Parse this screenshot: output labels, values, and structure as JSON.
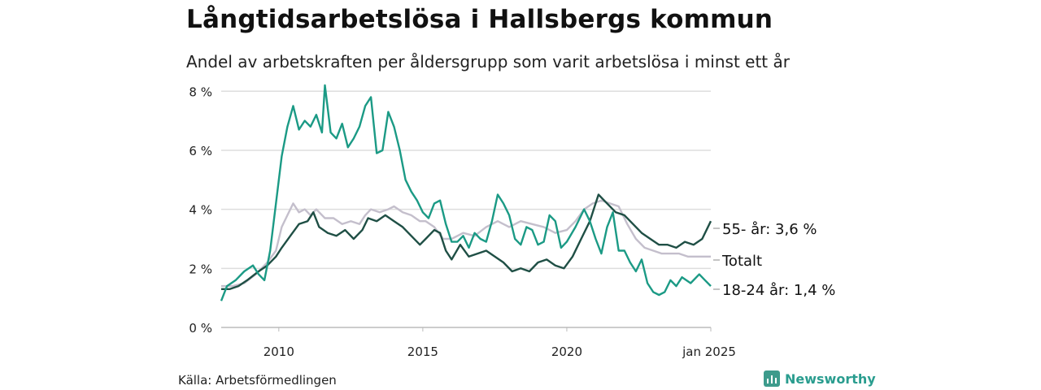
{
  "title": "Långtidsarbetslösa i Hallsbergs kommun",
  "subtitle": "Andel av arbetskraften per åldersgrupp som varit arbetslösa i minst ett år",
  "source": "Källa: Arbetsförmedlingen",
  "brand": {
    "name": "Newsworthy",
    "icon": "bar-chart-icon",
    "color": "#2a9d8f"
  },
  "chart_data": {
    "type": "line",
    "ylim": [
      0,
      8.2
    ],
    "y_ticks": [
      0,
      2,
      4,
      6,
      8
    ],
    "y_tick_labels": [
      "0 %",
      "2 %",
      "4 %",
      "6 %",
      "8 %"
    ],
    "x_range": [
      2008.0,
      2025.0
    ],
    "x_ticks": [
      2010,
      2015,
      2020,
      2025
    ],
    "x_tick_labels": [
      "2010",
      "2015",
      "2020",
      "jan 2025"
    ],
    "grid": true,
    "series": [
      {
        "name": "Totalt",
        "label": "Totalt",
        "color": "#c4bfcc",
        "points": [
          [
            2008.0,
            1.4
          ],
          [
            2008.4,
            1.4
          ],
          [
            2008.8,
            1.5
          ],
          [
            2009.2,
            1.8
          ],
          [
            2009.6,
            2.2
          ],
          [
            2009.9,
            2.6
          ],
          [
            2010.1,
            3.4
          ],
          [
            2010.3,
            3.8
          ],
          [
            2010.5,
            4.2
          ],
          [
            2010.7,
            3.9
          ],
          [
            2010.9,
            4.0
          ],
          [
            2011.1,
            3.8
          ],
          [
            2011.3,
            4.0
          ],
          [
            2011.6,
            3.7
          ],
          [
            2011.9,
            3.7
          ],
          [
            2012.2,
            3.5
          ],
          [
            2012.5,
            3.6
          ],
          [
            2012.8,
            3.5
          ],
          [
            2013.0,
            3.8
          ],
          [
            2013.2,
            4.0
          ],
          [
            2013.5,
            3.9
          ],
          [
            2013.8,
            4.0
          ],
          [
            2014.0,
            4.1
          ],
          [
            2014.3,
            3.9
          ],
          [
            2014.6,
            3.8
          ],
          [
            2014.9,
            3.6
          ],
          [
            2015.1,
            3.6
          ],
          [
            2015.4,
            3.4
          ],
          [
            2015.7,
            3.0
          ],
          [
            2016.0,
            3.0
          ],
          [
            2016.4,
            3.2
          ],
          [
            2016.8,
            3.1
          ],
          [
            2017.2,
            3.4
          ],
          [
            2017.6,
            3.6
          ],
          [
            2018.0,
            3.4
          ],
          [
            2018.4,
            3.6
          ],
          [
            2018.8,
            3.5
          ],
          [
            2019.2,
            3.4
          ],
          [
            2019.6,
            3.2
          ],
          [
            2020.0,
            3.3
          ],
          [
            2020.3,
            3.6
          ],
          [
            2020.6,
            4.0
          ],
          [
            2020.9,
            4.2
          ],
          [
            2021.2,
            4.3
          ],
          [
            2021.5,
            4.2
          ],
          [
            2021.8,
            4.1
          ],
          [
            2022.1,
            3.5
          ],
          [
            2022.4,
            3.0
          ],
          [
            2022.7,
            2.7
          ],
          [
            2023.0,
            2.6
          ],
          [
            2023.3,
            2.5
          ],
          [
            2023.6,
            2.5
          ],
          [
            2023.9,
            2.5
          ],
          [
            2024.2,
            2.4
          ],
          [
            2024.5,
            2.4
          ],
          [
            2024.8,
            2.4
          ],
          [
            2025.0,
            2.4
          ]
        ]
      },
      {
        "name": "55- år",
        "label": "55- år: 3,6 %",
        "color": "#1f4f45",
        "points": [
          [
            2008.0,
            1.3
          ],
          [
            2008.3,
            1.3
          ],
          [
            2008.6,
            1.4
          ],
          [
            2008.9,
            1.6
          ],
          [
            2009.3,
            1.9
          ],
          [
            2009.6,
            2.1
          ],
          [
            2009.9,
            2.4
          ],
          [
            2010.1,
            2.7
          ],
          [
            2010.4,
            3.1
          ],
          [
            2010.7,
            3.5
          ],
          [
            2011.0,
            3.6
          ],
          [
            2011.2,
            3.9
          ],
          [
            2011.4,
            3.4
          ],
          [
            2011.7,
            3.2
          ],
          [
            2012.0,
            3.1
          ],
          [
            2012.3,
            3.3
          ],
          [
            2012.6,
            3.0
          ],
          [
            2012.9,
            3.3
          ],
          [
            2013.1,
            3.7
          ],
          [
            2013.4,
            3.6
          ],
          [
            2013.7,
            3.8
          ],
          [
            2014.0,
            3.6
          ],
          [
            2014.3,
            3.4
          ],
          [
            2014.6,
            3.1
          ],
          [
            2014.9,
            2.8
          ],
          [
            2015.1,
            3.0
          ],
          [
            2015.4,
            3.3
          ],
          [
            2015.6,
            3.2
          ],
          [
            2015.8,
            2.6
          ],
          [
            2016.0,
            2.3
          ],
          [
            2016.3,
            2.8
          ],
          [
            2016.6,
            2.4
          ],
          [
            2016.9,
            2.5
          ],
          [
            2017.2,
            2.6
          ],
          [
            2017.5,
            2.4
          ],
          [
            2017.8,
            2.2
          ],
          [
            2018.1,
            1.9
          ],
          [
            2018.4,
            2.0
          ],
          [
            2018.7,
            1.9
          ],
          [
            2019.0,
            2.2
          ],
          [
            2019.3,
            2.3
          ],
          [
            2019.6,
            2.1
          ],
          [
            2019.9,
            2.0
          ],
          [
            2020.2,
            2.4
          ],
          [
            2020.5,
            3.0
          ],
          [
            2020.8,
            3.6
          ],
          [
            2021.1,
            4.5
          ],
          [
            2021.4,
            4.2
          ],
          [
            2021.7,
            3.9
          ],
          [
            2022.0,
            3.8
          ],
          [
            2022.3,
            3.5
          ],
          [
            2022.6,
            3.2
          ],
          [
            2022.9,
            3.0
          ],
          [
            2023.2,
            2.8
          ],
          [
            2023.5,
            2.8
          ],
          [
            2023.8,
            2.7
          ],
          [
            2024.1,
            2.9
          ],
          [
            2024.4,
            2.8
          ],
          [
            2024.7,
            3.0
          ],
          [
            2025.0,
            3.6
          ]
        ]
      },
      {
        "name": "18-24 år",
        "label": "18-24 år: 1,4 %",
        "color": "#1b9a85",
        "points": [
          [
            2008.0,
            0.9
          ],
          [
            2008.2,
            1.4
          ],
          [
            2008.5,
            1.6
          ],
          [
            2008.8,
            1.9
          ],
          [
            2009.1,
            2.1
          ],
          [
            2009.3,
            1.8
          ],
          [
            2009.5,
            1.6
          ],
          [
            2009.7,
            2.6
          ],
          [
            2009.9,
            4.2
          ],
          [
            2010.1,
            5.8
          ],
          [
            2010.3,
            6.8
          ],
          [
            2010.5,
            7.5
          ],
          [
            2010.7,
            6.7
          ],
          [
            2010.9,
            7.0
          ],
          [
            2011.1,
            6.8
          ],
          [
            2011.3,
            7.2
          ],
          [
            2011.5,
            6.6
          ],
          [
            2011.6,
            8.2
          ],
          [
            2011.8,
            6.6
          ],
          [
            2012.0,
            6.4
          ],
          [
            2012.2,
            6.9
          ],
          [
            2012.4,
            6.1
          ],
          [
            2012.6,
            6.4
          ],
          [
            2012.8,
            6.8
          ],
          [
            2013.0,
            7.5
          ],
          [
            2013.2,
            7.8
          ],
          [
            2013.4,
            5.9
          ],
          [
            2013.6,
            6.0
          ],
          [
            2013.8,
            7.3
          ],
          [
            2014.0,
            6.8
          ],
          [
            2014.2,
            6.0
          ],
          [
            2014.4,
            5.0
          ],
          [
            2014.6,
            4.6
          ],
          [
            2014.8,
            4.3
          ],
          [
            2015.0,
            3.9
          ],
          [
            2015.2,
            3.7
          ],
          [
            2015.4,
            4.2
          ],
          [
            2015.6,
            4.3
          ],
          [
            2015.8,
            3.5
          ],
          [
            2016.0,
            2.9
          ],
          [
            2016.2,
            2.9
          ],
          [
            2016.4,
            3.1
          ],
          [
            2016.6,
            2.7
          ],
          [
            2016.8,
            3.2
          ],
          [
            2017.0,
            3.0
          ],
          [
            2017.2,
            2.9
          ],
          [
            2017.4,
            3.6
          ],
          [
            2017.6,
            4.5
          ],
          [
            2017.8,
            4.2
          ],
          [
            2018.0,
            3.8
          ],
          [
            2018.2,
            3.0
          ],
          [
            2018.4,
            2.8
          ],
          [
            2018.6,
            3.4
          ],
          [
            2018.8,
            3.3
          ],
          [
            2019.0,
            2.8
          ],
          [
            2019.2,
            2.9
          ],
          [
            2019.4,
            3.8
          ],
          [
            2019.6,
            3.6
          ],
          [
            2019.8,
            2.7
          ],
          [
            2020.0,
            2.9
          ],
          [
            2020.3,
            3.4
          ],
          [
            2020.6,
            4.0
          ],
          [
            2020.8,
            3.6
          ],
          [
            2021.0,
            3.0
          ],
          [
            2021.2,
            2.5
          ],
          [
            2021.4,
            3.4
          ],
          [
            2021.6,
            3.9
          ],
          [
            2021.8,
            2.6
          ],
          [
            2022.0,
            2.6
          ],
          [
            2022.2,
            2.2
          ],
          [
            2022.4,
            1.9
          ],
          [
            2022.6,
            2.3
          ],
          [
            2022.8,
            1.5
          ],
          [
            2023.0,
            1.2
          ],
          [
            2023.2,
            1.1
          ],
          [
            2023.4,
            1.2
          ],
          [
            2023.6,
            1.6
          ],
          [
            2023.8,
            1.4
          ],
          [
            2024.0,
            1.7
          ],
          [
            2024.3,
            1.5
          ],
          [
            2024.6,
            1.8
          ],
          [
            2024.8,
            1.6
          ],
          [
            2025.0,
            1.4
          ]
        ]
      }
    ]
  }
}
